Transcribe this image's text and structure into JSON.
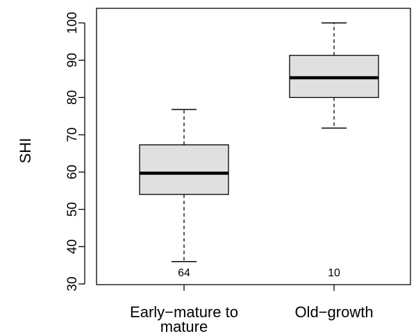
{
  "chart_data": {
    "type": "boxplot",
    "ylabel": "SHI",
    "xlabel": "",
    "ylim": [
      30,
      100
    ],
    "yticks": [
      30,
      40,
      50,
      60,
      70,
      80,
      90,
      100
    ],
    "categories": [
      {
        "label_lines": [
          "Early−mature to",
          "mature"
        ],
        "n": "64",
        "min": 36,
        "q1": 54,
        "median": 59.7,
        "q3": 67.3,
        "max": 76.8
      },
      {
        "label_lines": [
          "Old−growth"
        ],
        "n": "10",
        "min": 71.8,
        "q1": 80,
        "median": 85.3,
        "q3": 91.3,
        "max": 100
      }
    ]
  }
}
